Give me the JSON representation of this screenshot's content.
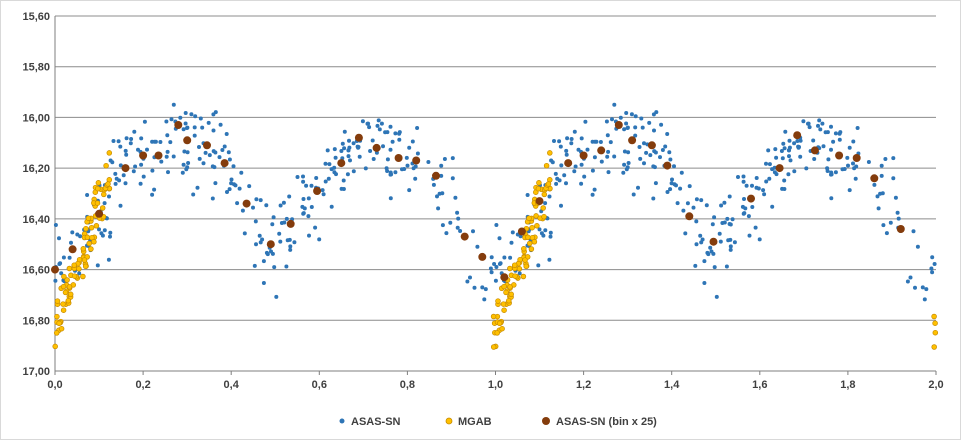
{
  "chart_data": {
    "type": "scatter",
    "title": "",
    "xlabel": "",
    "ylabel": "",
    "xlim": [
      0,
      2
    ],
    "ylim": [
      15.6,
      17.0
    ],
    "y_reversed": true,
    "x_ticks": [
      "0,0",
      "0,2",
      "0,4",
      "0,6",
      "0,8",
      "1,0",
      "1,2",
      "1,4",
      "1,6",
      "1,8",
      "2,0"
    ],
    "x_tick_values": [
      0,
      0.2,
      0.4,
      0.6,
      0.8,
      1.0,
      1.2,
      1.4,
      1.6,
      1.8,
      2.0
    ],
    "y_ticks": [
      "15,60",
      "15,80",
      "16,00",
      "16,20",
      "16,40",
      "16,60",
      "16,80",
      "17,00"
    ],
    "y_tick_values": [
      15.6,
      15.8,
      16.0,
      16.2,
      16.4,
      16.6,
      16.8,
      17.0
    ],
    "grid": true,
    "legend_position": "bottom",
    "legend": [
      "ASAS-SN",
      "MGAB",
      "ASAS-SN (bin x 25)"
    ],
    "colors": {
      "ASAS-SN": "#2e75b6",
      "MGAB": "#ffc000",
      "MGAB_edge": "#c58a00",
      "bin": "#843c0c",
      "grid": "#8c8c8c",
      "axis": "#7f7f7f",
      "text": "#404040"
    },
    "series": [
      {
        "name": "ASAS-SN (bin x 25)",
        "marker": "large-dot",
        "x": [
          0.0,
          0.04,
          0.1,
          0.16,
          0.2,
          0.235,
          0.28,
          0.3,
          0.345,
          0.385,
          0.435,
          0.49,
          0.535,
          0.595,
          0.65,
          0.69,
          0.73,
          0.78,
          0.82,
          0.865,
          0.93,
          0.97,
          1.02,
          1.06,
          1.1,
          1.165,
          1.2,
          1.24,
          1.28,
          1.31,
          1.355,
          1.39,
          1.44,
          1.495,
          1.58,
          1.645,
          1.685,
          1.725,
          1.78,
          1.82,
          1.86,
          1.92
        ],
        "y": [
          16.6,
          16.52,
          16.38,
          16.2,
          16.15,
          16.15,
          16.03,
          16.09,
          16.11,
          16.18,
          16.34,
          16.5,
          16.42,
          16.29,
          16.18,
          16.08,
          16.12,
          16.16,
          16.17,
          16.23,
          16.47,
          16.55,
          16.63,
          16.45,
          16.33,
          16.18,
          16.15,
          16.13,
          16.03,
          16.09,
          16.11,
          16.19,
          16.39,
          16.49,
          16.32,
          16.2,
          16.07,
          16.13,
          16.15,
          16.16,
          16.24,
          16.44
        ]
      }
    ]
  },
  "legend_labels": {
    "asassn": "ASAS-SN",
    "mgab": "MGAB",
    "bin": "ASAS-SN (bin x 25)"
  }
}
